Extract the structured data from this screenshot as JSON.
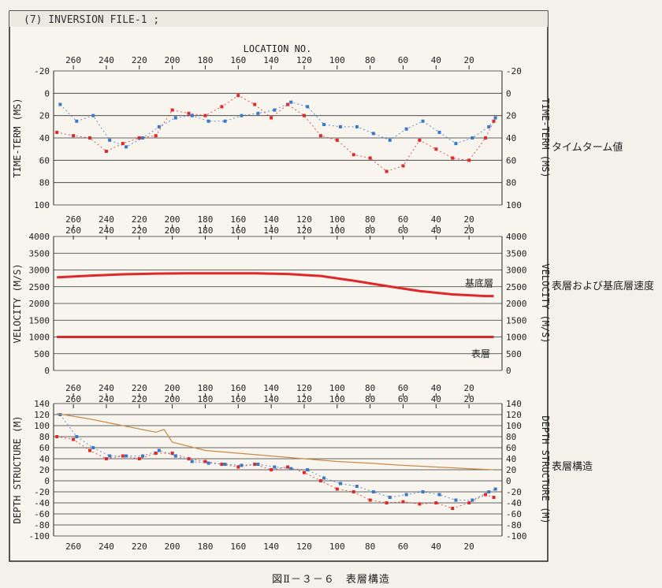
{
  "header": {
    "title": "(7) INVERSION FILE-1 ;"
  },
  "top_axis_label": "LOCATION NO.",
  "location_ticks": [
    "260",
    "240",
    "220",
    "200",
    "180",
    "160",
    "140",
    "120",
    "100",
    "80",
    "60",
    "40",
    "20"
  ],
  "side_labels": {
    "time_term": "タイムターム値",
    "velocity": "表層および基底層速度",
    "depth": "表層構造"
  },
  "caption": "図Ⅱ－３－６　表層構造",
  "colors": {
    "background": "#f4f1ea",
    "red_series": "#e0282a",
    "blue_series": "#3a78c8",
    "orange_line": "#c98a4a",
    "grid": "#333333"
  },
  "chart_data": [
    {
      "type": "scatter",
      "ylabel": "TIME-TERM (MS)",
      "ylim": [
        -20,
        100
      ],
      "y_inverted": true,
      "yticks": [
        -20,
        0,
        20,
        40,
        60,
        80,
        100
      ],
      "x_reversed": true,
      "xlim": [
        272,
        0
      ],
      "grid": true,
      "series": [
        {
          "color": "red",
          "x": [
            270,
            260,
            250,
            240,
            230,
            220,
            210,
            200,
            190,
            180,
            170,
            160,
            150,
            140,
            130,
            120,
            110,
            100,
            90,
            80,
            70,
            60,
            50,
            40,
            30,
            20,
            10,
            5
          ],
          "y": [
            35,
            38,
            40,
            52,
            45,
            40,
            38,
            15,
            18,
            20,
            12,
            2,
            10,
            22,
            10,
            20,
            38,
            42,
            55,
            58,
            70,
            65,
            42,
            50,
            58,
            60,
            40,
            25
          ]
        },
        {
          "color": "blue",
          "x": [
            268,
            258,
            248,
            238,
            228,
            218,
            208,
            198,
            188,
            178,
            168,
            158,
            148,
            138,
            128,
            118,
            108,
            98,
            88,
            78,
            68,
            58,
            48,
            38,
            28,
            18,
            8,
            4
          ],
          "y": [
            10,
            25,
            20,
            42,
            48,
            40,
            30,
            22,
            20,
            25,
            25,
            20,
            18,
            15,
            8,
            12,
            28,
            30,
            30,
            36,
            42,
            32,
            25,
            35,
            45,
            40,
            30,
            22
          ]
        }
      ]
    },
    {
      "type": "line",
      "ylabel": "VELOCITY (M/S)",
      "ylim": [
        0,
        4000
      ],
      "yticks": [
        0,
        500,
        1000,
        1500,
        2000,
        2500,
        3000,
        3500,
        4000
      ],
      "x_reversed": true,
      "xlim": [
        272,
        0
      ],
      "grid": true,
      "annotations": [
        "基底層",
        "表層"
      ],
      "series": [
        {
          "color": "red",
          "x": [
            270,
            250,
            230,
            210,
            190,
            170,
            150,
            130,
            110,
            90,
            70,
            50,
            30,
            10,
            5
          ],
          "y": [
            2780,
            2830,
            2870,
            2890,
            2900,
            2900,
            2900,
            2880,
            2820,
            2680,
            2520,
            2370,
            2270,
            2220,
            2220
          ]
        },
        {
          "color": "red",
          "x": [
            270,
            5
          ],
          "y": [
            1000,
            1000
          ]
        }
      ]
    },
    {
      "type": "scatter",
      "ylabel": "DEPTH STRUCTURE (M)",
      "ylim": [
        -100,
        140
      ],
      "yticks": [
        -100,
        -80,
        -60,
        -40,
        -20,
        0,
        20,
        40,
        60,
        80,
        100,
        120,
        140
      ],
      "x_reversed": true,
      "xlim": [
        272,
        0
      ],
      "grid": true,
      "series": [
        {
          "color": "red",
          "x": [
            270,
            260,
            250,
            240,
            230,
            220,
            210,
            200,
            190,
            180,
            170,
            160,
            150,
            140,
            130,
            120,
            110,
            100,
            90,
            80,
            70,
            60,
            50,
            40,
            30,
            20,
            10,
            5
          ],
          "y": [
            80,
            75,
            55,
            40,
            45,
            40,
            50,
            50,
            40,
            35,
            30,
            25,
            30,
            20,
            25,
            15,
            0,
            -15,
            -20,
            -35,
            -40,
            -38,
            -42,
            -40,
            -50,
            -40,
            -25,
            -30
          ]
        },
        {
          "color": "blue",
          "x": [
            268,
            258,
            248,
            238,
            228,
            218,
            208,
            198,
            188,
            178,
            168,
            158,
            148,
            138,
            128,
            118,
            108,
            98,
            88,
            78,
            68,
            58,
            48,
            38,
            28,
            18,
            8,
            4
          ],
          "y": [
            120,
            80,
            60,
            45,
            45,
            45,
            55,
            45,
            35,
            32,
            30,
            28,
            30,
            25,
            22,
            20,
            5,
            -5,
            -10,
            -20,
            -30,
            -25,
            -20,
            -25,
            -35,
            -35,
            -20,
            -15
          ]
        },
        {
          "color": "orange",
          "x": [
            270,
            250,
            230,
            210,
            205,
            200,
            180,
            160,
            140,
            120,
            100,
            80,
            60,
            40,
            20,
            5
          ],
          "y": [
            122,
            112,
            100,
            88,
            93,
            70,
            55,
            50,
            45,
            40,
            35,
            32,
            28,
            25,
            22,
            20
          ]
        }
      ]
    }
  ]
}
